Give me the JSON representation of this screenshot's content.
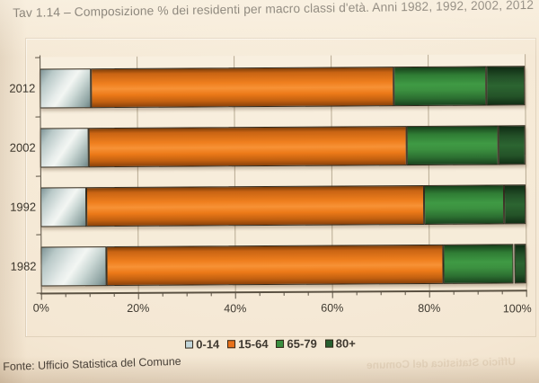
{
  "title": "Tav 1.14 – Composizione % dei residenti per macro classi d'età. Anni 1982, 1992, 2002, 2012",
  "source": "Fonte: Ufficio Statistica del Comune",
  "show_through_text": "Ufficio Statistica del Comune",
  "colors": {
    "page_bg": "#f4e7d3",
    "plot_bg": "#f7eedd",
    "gridline": "#b7aa92",
    "axis": "#5a5142",
    "text": "#453f36"
  },
  "chart_data": {
    "type": "bar",
    "orientation": "horizontal",
    "stacked": true,
    "title": "Tav 1.14 – Composizione % dei residenti per macro classi d'età. Anni 1982, 1992, 2002, 2012",
    "categories": [
      "2012",
      "2002",
      "1992",
      "1982"
    ],
    "series": [
      {
        "name": "0-14",
        "color": "#c2d6da",
        "values": [
          10.5,
          10.0,
          9.5,
          13.5
        ]
      },
      {
        "name": "15-64",
        "color": "#e8711a",
        "values": [
          62.5,
          65.5,
          69.5,
          69.5
        ]
      },
      {
        "name": "65-79",
        "color": "#3a8f3f",
        "values": [
          19.0,
          19.0,
          16.5,
          14.5
        ]
      },
      {
        "name": "80+",
        "color": "#276030",
        "values": [
          8.0,
          5.5,
          4.5,
          2.5
        ]
      }
    ],
    "xlabel": "",
    "ylabel": "",
    "xlim": [
      0,
      100
    ],
    "x_ticks": [
      "0%",
      "20%",
      "40%",
      "60%",
      "80%",
      "100%"
    ],
    "major_tick_step": 20,
    "minor_tick_step": 5,
    "grid": true,
    "legend_position": "bottom",
    "units": "%"
  }
}
